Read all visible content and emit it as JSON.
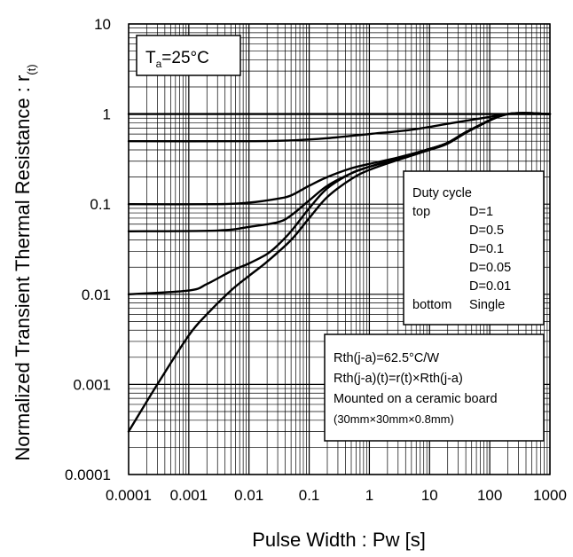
{
  "chart_data": {
    "type": "line",
    "title": "",
    "xlabel": "Pulse Width : Pw [s]",
    "ylabel_main": "Normalized Transient Thermal Resistance : r",
    "ylabel_sub": "(t)",
    "x_scale": "log",
    "y_scale": "log",
    "xlim": [
      0.0001,
      1000
    ],
    "ylim": [
      0.0001,
      10
    ],
    "grid": true,
    "x_ticks": [
      "0.0001",
      "0.001",
      "0.01",
      "0.1",
      "1",
      "10",
      "100",
      "1000"
    ],
    "y_ticks": [
      "0.0001",
      "0.001",
      "0.01",
      "0.1",
      "1",
      "10"
    ],
    "condition": {
      "symbol": "T",
      "subscript": "a",
      "value": "=25°C"
    },
    "legend": {
      "placement": "right",
      "title": "Duty cycle",
      "rows": [
        {
          "prefix": "top",
          "label": "D=1"
        },
        {
          "prefix": "",
          "label": "D=0.5"
        },
        {
          "prefix": "",
          "label": "D=0.1"
        },
        {
          "prefix": "",
          "label": "D=0.05"
        },
        {
          "prefix": "",
          "label": "D=0.01"
        },
        {
          "prefix": "bottom",
          "label": "Single"
        }
      ]
    },
    "notes": [
      "Rth(j-a)=62.5°C/W",
      "Rth(j-a)(t)=r(t)×Rth(j-a)",
      "Mounted on a ceramic board",
      "(30mm×30mm×0.8mm)"
    ],
    "series": [
      {
        "x": [
          0.0001,
          1000
        ],
        "y": [
          1,
          1
        ]
      },
      {
        "x": [
          0.0001,
          0.01,
          0.05,
          0.2,
          1,
          5,
          20,
          100,
          200,
          1000
        ],
        "y": [
          0.5,
          0.5,
          0.51,
          0.54,
          0.6,
          0.67,
          0.78,
          0.93,
          1,
          1
        ]
      },
      {
        "x": [
          0.0001,
          0.003,
          0.01,
          0.03,
          0.05,
          0.1,
          0.2,
          0.5,
          1,
          3,
          10,
          20,
          50,
          200,
          1000
        ],
        "y": [
          0.1,
          0.1,
          0.104,
          0.115,
          0.125,
          0.16,
          0.2,
          0.25,
          0.28,
          0.33,
          0.41,
          0.48,
          0.68,
          1,
          1
        ]
      },
      {
        "x": [
          0.0001,
          0.003,
          0.01,
          0.03,
          0.05,
          0.1,
          0.2,
          0.5,
          1,
          3,
          10,
          20,
          50,
          200,
          1000
        ],
        "y": [
          0.05,
          0.051,
          0.056,
          0.063,
          0.075,
          0.11,
          0.16,
          0.22,
          0.26,
          0.32,
          0.41,
          0.48,
          0.68,
          1,
          1
        ]
      },
      {
        "x": [
          0.0001,
          0.001,
          0.002,
          0.005,
          0.01,
          0.02,
          0.03,
          0.05,
          0.1,
          0.2,
          0.5,
          1,
          3,
          10,
          20,
          50,
          200,
          1000
        ],
        "y": [
          0.01,
          0.011,
          0.013,
          0.018,
          0.022,
          0.028,
          0.035,
          0.05,
          0.09,
          0.15,
          0.22,
          0.26,
          0.32,
          0.41,
          0.48,
          0.68,
          1,
          1
        ]
      },
      {
        "x": [
          0.0001,
          0.0003,
          0.001,
          0.002,
          0.005,
          0.01,
          0.02,
          0.05,
          0.1,
          0.2,
          0.5,
          1,
          3,
          10,
          20,
          50,
          200,
          1000
        ],
        "y": [
          0.0003,
          0.001,
          0.0035,
          0.006,
          0.011,
          0.016,
          0.023,
          0.04,
          0.07,
          0.12,
          0.19,
          0.24,
          0.31,
          0.4,
          0.47,
          0.67,
          1,
          1
        ]
      }
    ]
  }
}
